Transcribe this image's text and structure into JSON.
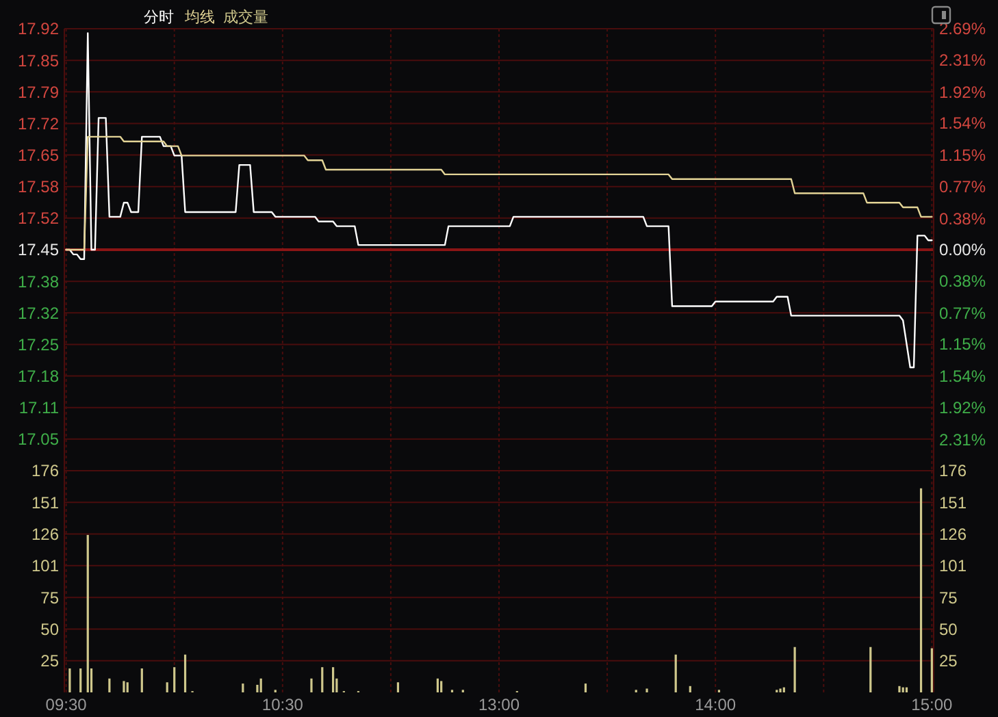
{
  "chart_data": [
    {
      "type": "line",
      "legend": "top left",
      "grid": true,
      "tick_labels": "y",
      "ylim": [
        16.9806,
        17.9194
      ],
      "yticks": [
        {
          "value": 17.9194,
          "label": "17.92"
        },
        {
          "value": 17.8523,
          "label": "17.85"
        },
        {
          "value": 17.7853,
          "label": "17.79"
        },
        {
          "value": 17.7182,
          "label": "17.72"
        },
        {
          "value": 17.6512,
          "label": "17.65"
        },
        {
          "value": 17.5841,
          "label": "17.58"
        },
        {
          "value": 17.5171,
          "label": "17.52"
        },
        {
          "value": 17.45,
          "label": "17.45"
        },
        {
          "value": 17.3829,
          "label": "17.38"
        },
        {
          "value": 17.3159,
          "label": "17.32"
        },
        {
          "value": 17.2488,
          "label": "17.25"
        },
        {
          "value": 17.1818,
          "label": "17.18"
        },
        {
          "value": 17.1147,
          "label": "17.11"
        },
        {
          "value": 17.0477,
          "label": "17.05"
        }
      ],
      "y2lim": [
        -2.69,
        2.69
      ],
      "y2ticks": [
        {
          "value": 2.69,
          "label": "2.69%"
        },
        {
          "value": 2.31,
          "label": "2.31%"
        },
        {
          "value": 1.92,
          "label": "1.92%"
        },
        {
          "value": 1.54,
          "label": "1.54%"
        },
        {
          "value": 1.15,
          "label": "1.15%"
        },
        {
          "value": 0.77,
          "label": "0.77%"
        },
        {
          "value": 0.38,
          "label": "0.38%"
        },
        {
          "value": 0,
          "label": "0.00%"
        },
        {
          "value": -0.38,
          "label": "0.38%"
        },
        {
          "value": -0.77,
          "label": "0.77%"
        },
        {
          "value": -1.15,
          "label": "1.15%"
        },
        {
          "value": -1.54,
          "label": "1.54%"
        },
        {
          "value": -1.92,
          "label": "1.92%"
        },
        {
          "value": -2.31,
          "label": "2.31%"
        }
      ],
      "ref_lines": [
        {
          "axis": "y",
          "value": 17.45,
          "color": "#8b1515"
        }
      ],
      "series": [
        {
          "name": "分时",
          "color": "#ffffff",
          "values": [
            17.45,
            17.45,
            17.44,
            17.44,
            17.43,
            17.43,
            17.91,
            17.45,
            17.45,
            17.73,
            17.73,
            17.73,
            17.52,
            17.52,
            17.52,
            17.52,
            17.55,
            17.55,
            17.53,
            17.53,
            17.53,
            17.69,
            17.69,
            17.69,
            17.69,
            17.69,
            17.69,
            17.67,
            17.67,
            17.67,
            17.65,
            17.65,
            17.65,
            17.53,
            17.53,
            17.53,
            17.53,
            17.53,
            17.53,
            17.53,
            17.53,
            17.53,
            17.53,
            17.53,
            17.53,
            17.53,
            17.53,
            17.53,
            17.63,
            17.63,
            17.63,
            17.63,
            17.53,
            17.53,
            17.53,
            17.53,
            17.53,
            17.53,
            17.52,
            17.52,
            17.52,
            17.52,
            17.52,
            17.52,
            17.52,
            17.52,
            17.52,
            17.52,
            17.52,
            17.52,
            17.51,
            17.51,
            17.51,
            17.51,
            17.51,
            17.5,
            17.5,
            17.5,
            17.5,
            17.5,
            17.5,
            17.46,
            17.46,
            17.46,
            17.46,
            17.46,
            17.46,
            17.46,
            17.46,
            17.46,
            17.46,
            17.46,
            17.46,
            17.46,
            17.46,
            17.46,
            17.46,
            17.46,
            17.46,
            17.46,
            17.46,
            17.46,
            17.46,
            17.46,
            17.46,
            17.46,
            17.5,
            17.5,
            17.5,
            17.5,
            17.5,
            17.5,
            17.5,
            17.5,
            17.5,
            17.5,
            17.5,
            17.5,
            17.5,
            17.5,
            17.5,
            17.5,
            17.5,
            17.5,
            17.52,
            17.52,
            17.52,
            17.52,
            17.52,
            17.52,
            17.52,
            17.52,
            17.52,
            17.52,
            17.52,
            17.52,
            17.52,
            17.52,
            17.52,
            17.52,
            17.52,
            17.52,
            17.52,
            17.52,
            17.52,
            17.52,
            17.52,
            17.52,
            17.52,
            17.52,
            17.52,
            17.52,
            17.52,
            17.52,
            17.52,
            17.52,
            17.52,
            17.52,
            17.52,
            17.52,
            17.52,
            17.5,
            17.5,
            17.5,
            17.5,
            17.5,
            17.5,
            17.5,
            17.33,
            17.33,
            17.33,
            17.33,
            17.33,
            17.33,
            17.33,
            17.33,
            17.33,
            17.33,
            17.33,
            17.33,
            17.34,
            17.34,
            17.34,
            17.34,
            17.34,
            17.34,
            17.34,
            17.34,
            17.34,
            17.34,
            17.34,
            17.34,
            17.34,
            17.34,
            17.34,
            17.34,
            17.34,
            17.35,
            17.35,
            17.35,
            17.35,
            17.31,
            17.31,
            17.31,
            17.31,
            17.31,
            17.31,
            17.31,
            17.31,
            17.31,
            17.31,
            17.31,
            17.31,
            17.31,
            17.31,
            17.31,
            17.31,
            17.31,
            17.31,
            17.31,
            17.31,
            17.31,
            17.31,
            17.31,
            17.31,
            17.31,
            17.31,
            17.31,
            17.31,
            17.31,
            17.31,
            17.31,
            17.3,
            17.25,
            17.2,
            17.2,
            17.48,
            17.48,
            17.48,
            17.47,
            17.47
          ]
        },
        {
          "name": "均线",
          "color": "#e3d496",
          "values": [
            17.45,
            17.45,
            17.45,
            17.45,
            17.45,
            17.45,
            17.69,
            17.69,
            17.69,
            17.69,
            17.69,
            17.69,
            17.69,
            17.69,
            17.69,
            17.69,
            17.68,
            17.68,
            17.68,
            17.68,
            17.68,
            17.68,
            17.68,
            17.68,
            17.68,
            17.68,
            17.68,
            17.68,
            17.67,
            17.67,
            17.67,
            17.67,
            17.65,
            17.65,
            17.65,
            17.65,
            17.65,
            17.65,
            17.65,
            17.65,
            17.65,
            17.65,
            17.65,
            17.65,
            17.65,
            17.65,
            17.65,
            17.65,
            17.65,
            17.65,
            17.65,
            17.65,
            17.65,
            17.65,
            17.65,
            17.65,
            17.65,
            17.65,
            17.65,
            17.65,
            17.65,
            17.65,
            17.65,
            17.65,
            17.65,
            17.65,
            17.65,
            17.64,
            17.64,
            17.64,
            17.64,
            17.64,
            17.62,
            17.62,
            17.62,
            17.62,
            17.62,
            17.62,
            17.62,
            17.62,
            17.62,
            17.62,
            17.62,
            17.62,
            17.62,
            17.62,
            17.62,
            17.62,
            17.62,
            17.62,
            17.62,
            17.62,
            17.62,
            17.62,
            17.62,
            17.62,
            17.62,
            17.62,
            17.62,
            17.62,
            17.62,
            17.62,
            17.62,
            17.62,
            17.62,
            17.61,
            17.61,
            17.61,
            17.61,
            17.61,
            17.61,
            17.61,
            17.61,
            17.61,
            17.61,
            17.61,
            17.61,
            17.61,
            17.61,
            17.61,
            17.61,
            17.61,
            17.61,
            17.61,
            17.61,
            17.61,
            17.61,
            17.61,
            17.61,
            17.61,
            17.61,
            17.61,
            17.61,
            17.61,
            17.61,
            17.61,
            17.61,
            17.61,
            17.61,
            17.61,
            17.61,
            17.61,
            17.61,
            17.61,
            17.61,
            17.61,
            17.61,
            17.61,
            17.61,
            17.61,
            17.61,
            17.61,
            17.61,
            17.61,
            17.61,
            17.61,
            17.61,
            17.61,
            17.61,
            17.61,
            17.61,
            17.61,
            17.61,
            17.61,
            17.61,
            17.61,
            17.61,
            17.61,
            17.6,
            17.6,
            17.6,
            17.6,
            17.6,
            17.6,
            17.6,
            17.6,
            17.6,
            17.6,
            17.6,
            17.6,
            17.6,
            17.6,
            17.6,
            17.6,
            17.6,
            17.6,
            17.6,
            17.6,
            17.6,
            17.6,
            17.6,
            17.6,
            17.6,
            17.6,
            17.6,
            17.6,
            17.6,
            17.6,
            17.6,
            17.6,
            17.6,
            17.6,
            17.57,
            17.57,
            17.57,
            17.57,
            17.57,
            17.57,
            17.57,
            17.57,
            17.57,
            17.57,
            17.57,
            17.57,
            17.57,
            17.57,
            17.57,
            17.57,
            17.57,
            17.57,
            17.57,
            17.57,
            17.55,
            17.55,
            17.55,
            17.55,
            17.55,
            17.55,
            17.55,
            17.55,
            17.55,
            17.55,
            17.54,
            17.54,
            17.54,
            17.54,
            17.54,
            17.52,
            17.52,
            17.52,
            17.52
          ]
        }
      ]
    },
    {
      "type": "bar",
      "grid": true,
      "legend": "top left",
      "categories": [
        "09:30",
        null,
        null,
        null,
        null,
        null,
        null,
        null,
        null,
        null,
        null,
        null,
        null,
        null,
        null,
        null,
        null,
        null,
        null,
        null,
        null,
        null,
        null,
        null,
        null,
        null,
        null,
        null,
        null,
        null,
        null,
        null,
        null,
        null,
        null,
        null,
        null,
        null,
        null,
        null,
        null,
        null,
        null,
        null,
        null,
        null,
        null,
        null,
        null,
        null,
        null,
        null,
        null,
        null,
        null,
        null,
        null,
        null,
        null,
        null,
        "10:30",
        null,
        null,
        null,
        null,
        null,
        null,
        null,
        null,
        null,
        null,
        null,
        null,
        null,
        null,
        null,
        null,
        null,
        null,
        null,
        null,
        null,
        null,
        null,
        null,
        null,
        null,
        null,
        null,
        null,
        null,
        null,
        null,
        null,
        null,
        null,
        null,
        null,
        null,
        null,
        null,
        null,
        null,
        null,
        null,
        null,
        null,
        null,
        null,
        null,
        null,
        null,
        null,
        null,
        null,
        null,
        null,
        null,
        null,
        null,
        "13:00",
        null,
        null,
        null,
        null,
        null,
        null,
        null,
        null,
        null,
        null,
        null,
        null,
        null,
        null,
        null,
        null,
        null,
        null,
        null,
        null,
        null,
        null,
        null,
        null,
        null,
        null,
        null,
        null,
        null,
        null,
        null,
        null,
        null,
        null,
        null,
        null,
        null,
        null,
        null,
        null,
        null,
        null,
        null,
        null,
        null,
        null,
        null,
        null,
        null,
        null,
        null,
        null,
        null,
        null,
        null,
        null,
        null,
        null,
        null,
        "14:00",
        null,
        null,
        null,
        null,
        null,
        null,
        null,
        null,
        null,
        null,
        null,
        null,
        null,
        null,
        null,
        null,
        null,
        null,
        null,
        null,
        null,
        null,
        null,
        null,
        null,
        null,
        null,
        null,
        null,
        null,
        null,
        null,
        null,
        null,
        null,
        null,
        null,
        null,
        null,
        null,
        null,
        null,
        null,
        null,
        null,
        null,
        null,
        null,
        null,
        null,
        null,
        null,
        null,
        null,
        null,
        null,
        null,
        null,
        null,
        "15:00"
      ],
      "ylim": [
        0,
        176
      ],
      "yticks": [
        {
          "value": 25.14,
          "label": "25"
        },
        {
          "value": 50.29,
          "label": "50"
        },
        {
          "value": 75.43,
          "label": "75"
        },
        {
          "value": 100.57,
          "label": "101"
        },
        {
          "value": 125.71,
          "label": "126"
        },
        {
          "value": 150.86,
          "label": "151"
        },
        {
          "value": 176,
          "label": "176"
        }
      ],
      "y2lim": [
        0,
        176
      ],
      "y2ticks": [
        {
          "value": 25.14,
          "label": "25"
        },
        {
          "value": 50.29,
          "label": "50"
        },
        {
          "value": 75.43,
          "label": "75"
        },
        {
          "value": 100.57,
          "label": "101"
        },
        {
          "value": 125.71,
          "label": "126"
        },
        {
          "value": 150.86,
          "label": "151"
        },
        {
          "value": 176,
          "label": "176"
        }
      ],
      "series": [
        {
          "name": "成交量",
          "color": "#cfc88c",
          "values": [
            null,
            19,
            null,
            null,
            19,
            null,
            125,
            19,
            null,
            null,
            null,
            null,
            11,
            null,
            null,
            null,
            9,
            8,
            null,
            null,
            null,
            19,
            null,
            null,
            null,
            null,
            null,
            null,
            8,
            null,
            20,
            null,
            null,
            30,
            null,
            1,
            null,
            null,
            null,
            null,
            null,
            null,
            null,
            null,
            null,
            null,
            null,
            null,
            null,
            7,
            null,
            null,
            null,
            6,
            11,
            null,
            null,
            null,
            2,
            null,
            null,
            null,
            null,
            null,
            null,
            null,
            null,
            null,
            11,
            null,
            null,
            20,
            null,
            null,
            20,
            11,
            null,
            1,
            null,
            null,
            null,
            1,
            null,
            null,
            null,
            null,
            null,
            null,
            null,
            null,
            null,
            null,
            8,
            null,
            null,
            null,
            null,
            null,
            null,
            null,
            null,
            null,
            null,
            11,
            9,
            null,
            null,
            2,
            null,
            null,
            2,
            null,
            null,
            null,
            null,
            null,
            null,
            null,
            null,
            null,
            null,
            null,
            null,
            null,
            null,
            1,
            null,
            null,
            null,
            null,
            null,
            null,
            null,
            null,
            null,
            null,
            null,
            null,
            null,
            null,
            null,
            null,
            null,
            null,
            7,
            null,
            null,
            null,
            null,
            null,
            null,
            null,
            null,
            null,
            null,
            null,
            null,
            null,
            2,
            null,
            null,
            3,
            null,
            null,
            null,
            null,
            null,
            null,
            null,
            30,
            null,
            null,
            null,
            5,
            null,
            null,
            null,
            null,
            null,
            null,
            null,
            2,
            null,
            null,
            null,
            null,
            null,
            null,
            null,
            null,
            null,
            null,
            null,
            null,
            null,
            null,
            null,
            2,
            3,
            4,
            null,
            null,
            36,
            null,
            null,
            null,
            null,
            null,
            null,
            null,
            null,
            null,
            null,
            null,
            null,
            null,
            null,
            null,
            null,
            null,
            null,
            null,
            null,
            36,
            null,
            null,
            null,
            null,
            null,
            null,
            null,
            5,
            4,
            4,
            null,
            null,
            null,
            162,
            null,
            null,
            35
          ]
        }
      ]
    }
  ]
}
